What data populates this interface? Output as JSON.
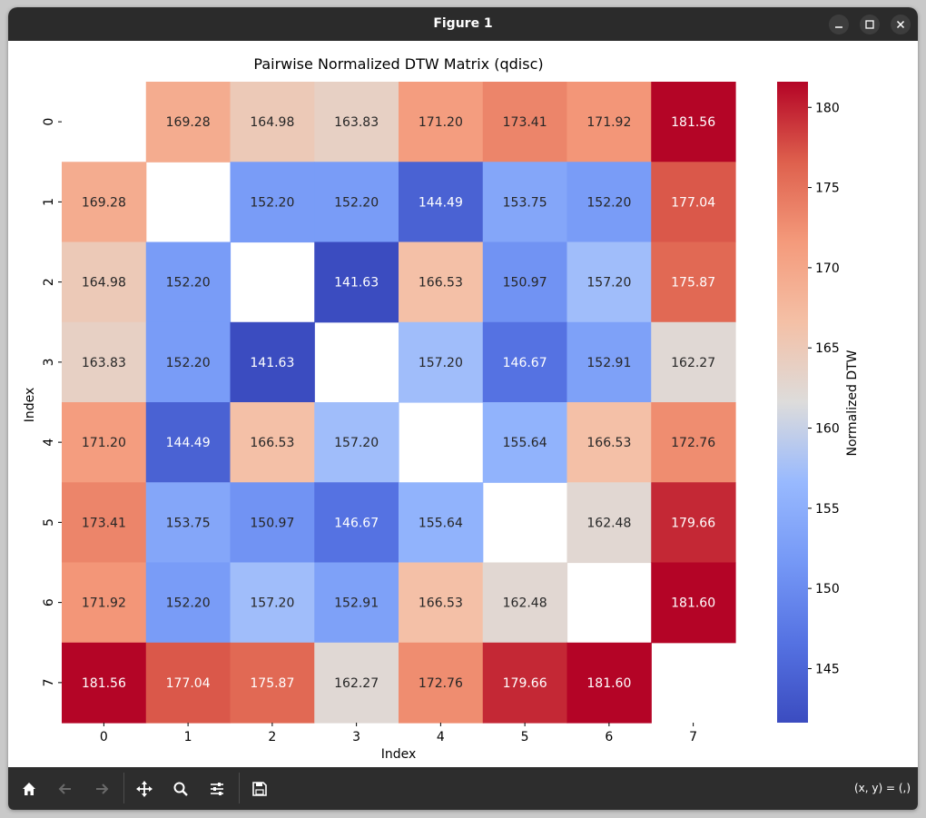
{
  "window": {
    "title": "Figure 1"
  },
  "toolbar": {
    "coord_readout": "(x, y) = (,)",
    "buttons": [
      "home-icon",
      "back-arrow-icon",
      "forward-arrow-icon",
      "pan-icon",
      "zoom-icon",
      "configure-subplots-icon",
      "save-icon"
    ]
  },
  "colors": {
    "titlebar": "#2b2b2b",
    "toolbar": "#2d2d2d",
    "colormap": "coolwarm"
  },
  "chart_data": {
    "type": "heatmap",
    "title": "Pairwise Normalized DTW Matrix (qdisc)",
    "xlabel": "Index",
    "ylabel": "Index",
    "x_categories": [
      "0",
      "1",
      "2",
      "3",
      "4",
      "5",
      "6",
      "7"
    ],
    "y_categories": [
      "0",
      "1",
      "2",
      "3",
      "4",
      "5",
      "6",
      "7"
    ],
    "colorbar": {
      "label": "Normalized DTW",
      "range": [
        141.63,
        181.6
      ],
      "ticks": [
        145,
        150,
        155,
        160,
        165,
        170,
        175,
        180
      ],
      "tick_labels": [
        "145",
        "150",
        "155",
        "160",
        "165",
        "170",
        "175",
        "180"
      ]
    },
    "values": [
      [
        null,
        169.28,
        164.98,
        163.83,
        171.2,
        173.41,
        171.92,
        181.56
      ],
      [
        169.28,
        null,
        152.2,
        152.2,
        144.49,
        153.75,
        152.2,
        177.04
      ],
      [
        164.98,
        152.2,
        null,
        141.63,
        166.53,
        150.97,
        157.2,
        175.87
      ],
      [
        163.83,
        152.2,
        141.63,
        null,
        157.2,
        146.67,
        152.91,
        162.27
      ],
      [
        171.2,
        144.49,
        166.53,
        157.2,
        null,
        155.64,
        166.53,
        172.76
      ],
      [
        173.41,
        153.75,
        150.97,
        146.67,
        155.64,
        null,
        162.48,
        179.66
      ],
      [
        171.92,
        152.2,
        157.2,
        152.91,
        166.53,
        162.48,
        null,
        181.6
      ],
      [
        181.56,
        177.04,
        175.87,
        162.27,
        172.76,
        179.66,
        181.6,
        null
      ]
    ],
    "annotation_format": "0.00"
  }
}
